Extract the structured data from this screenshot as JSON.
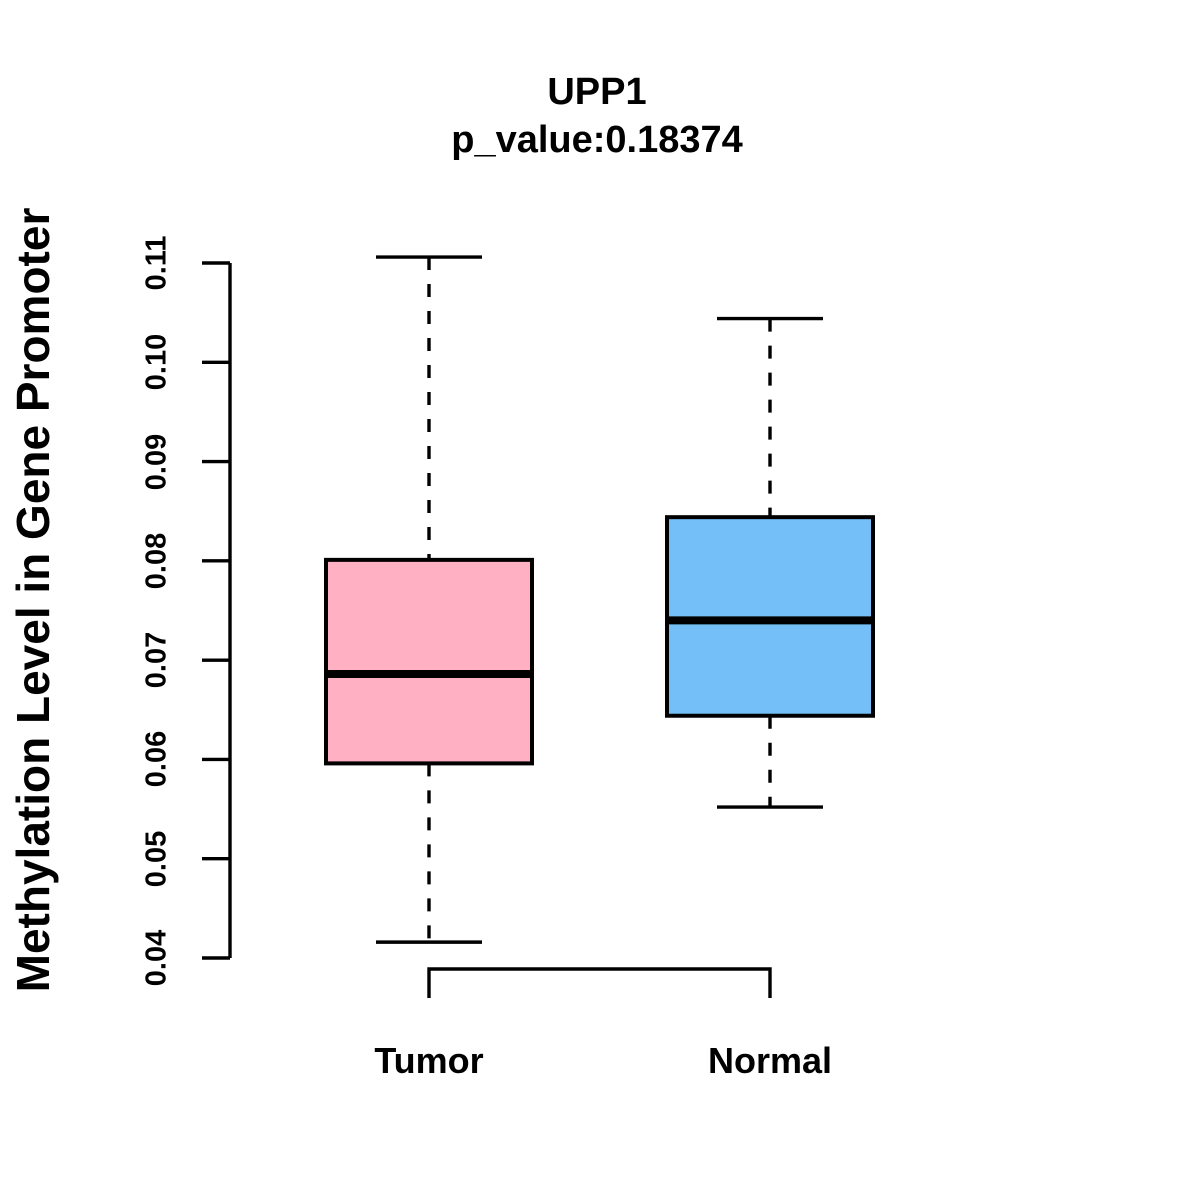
{
  "title": {
    "line1": "UPP1",
    "line2": "p_value:0.18374"
  },
  "colors": {
    "tumor_fill": "#FFB0C2",
    "normal_fill": "#74BFF7",
    "line": "#000000",
    "background": "#FFFFFF"
  },
  "chart_data": {
    "type": "boxplot",
    "title": "UPP1",
    "subtitle": "p_value:0.18374",
    "ylabel": "Methylation Level in Gene Promoter",
    "xlabel": "",
    "ylim": [
      0.04,
      0.11
    ],
    "yticks": [
      0.04,
      0.05,
      0.06,
      0.07,
      0.08,
      0.09,
      0.1,
      0.11
    ],
    "ytick_labels": [
      "0.04",
      "0.05",
      "0.06",
      "0.07",
      "0.08",
      "0.09",
      "0.10",
      "0.11"
    ],
    "grid": false,
    "legend": "none",
    "categories": [
      "Tumor",
      "Normal"
    ],
    "series": [
      {
        "name": "Tumor",
        "color": "#FFB0C2",
        "min": 0.0416,
        "q1": 0.0596,
        "median": 0.0686,
        "q3": 0.0801,
        "max": 0.1106
      },
      {
        "name": "Normal",
        "color": "#74BFF7",
        "min": 0.0552,
        "q1": 0.0644,
        "median": 0.074,
        "q3": 0.0844,
        "max": 0.1044
      }
    ]
  }
}
